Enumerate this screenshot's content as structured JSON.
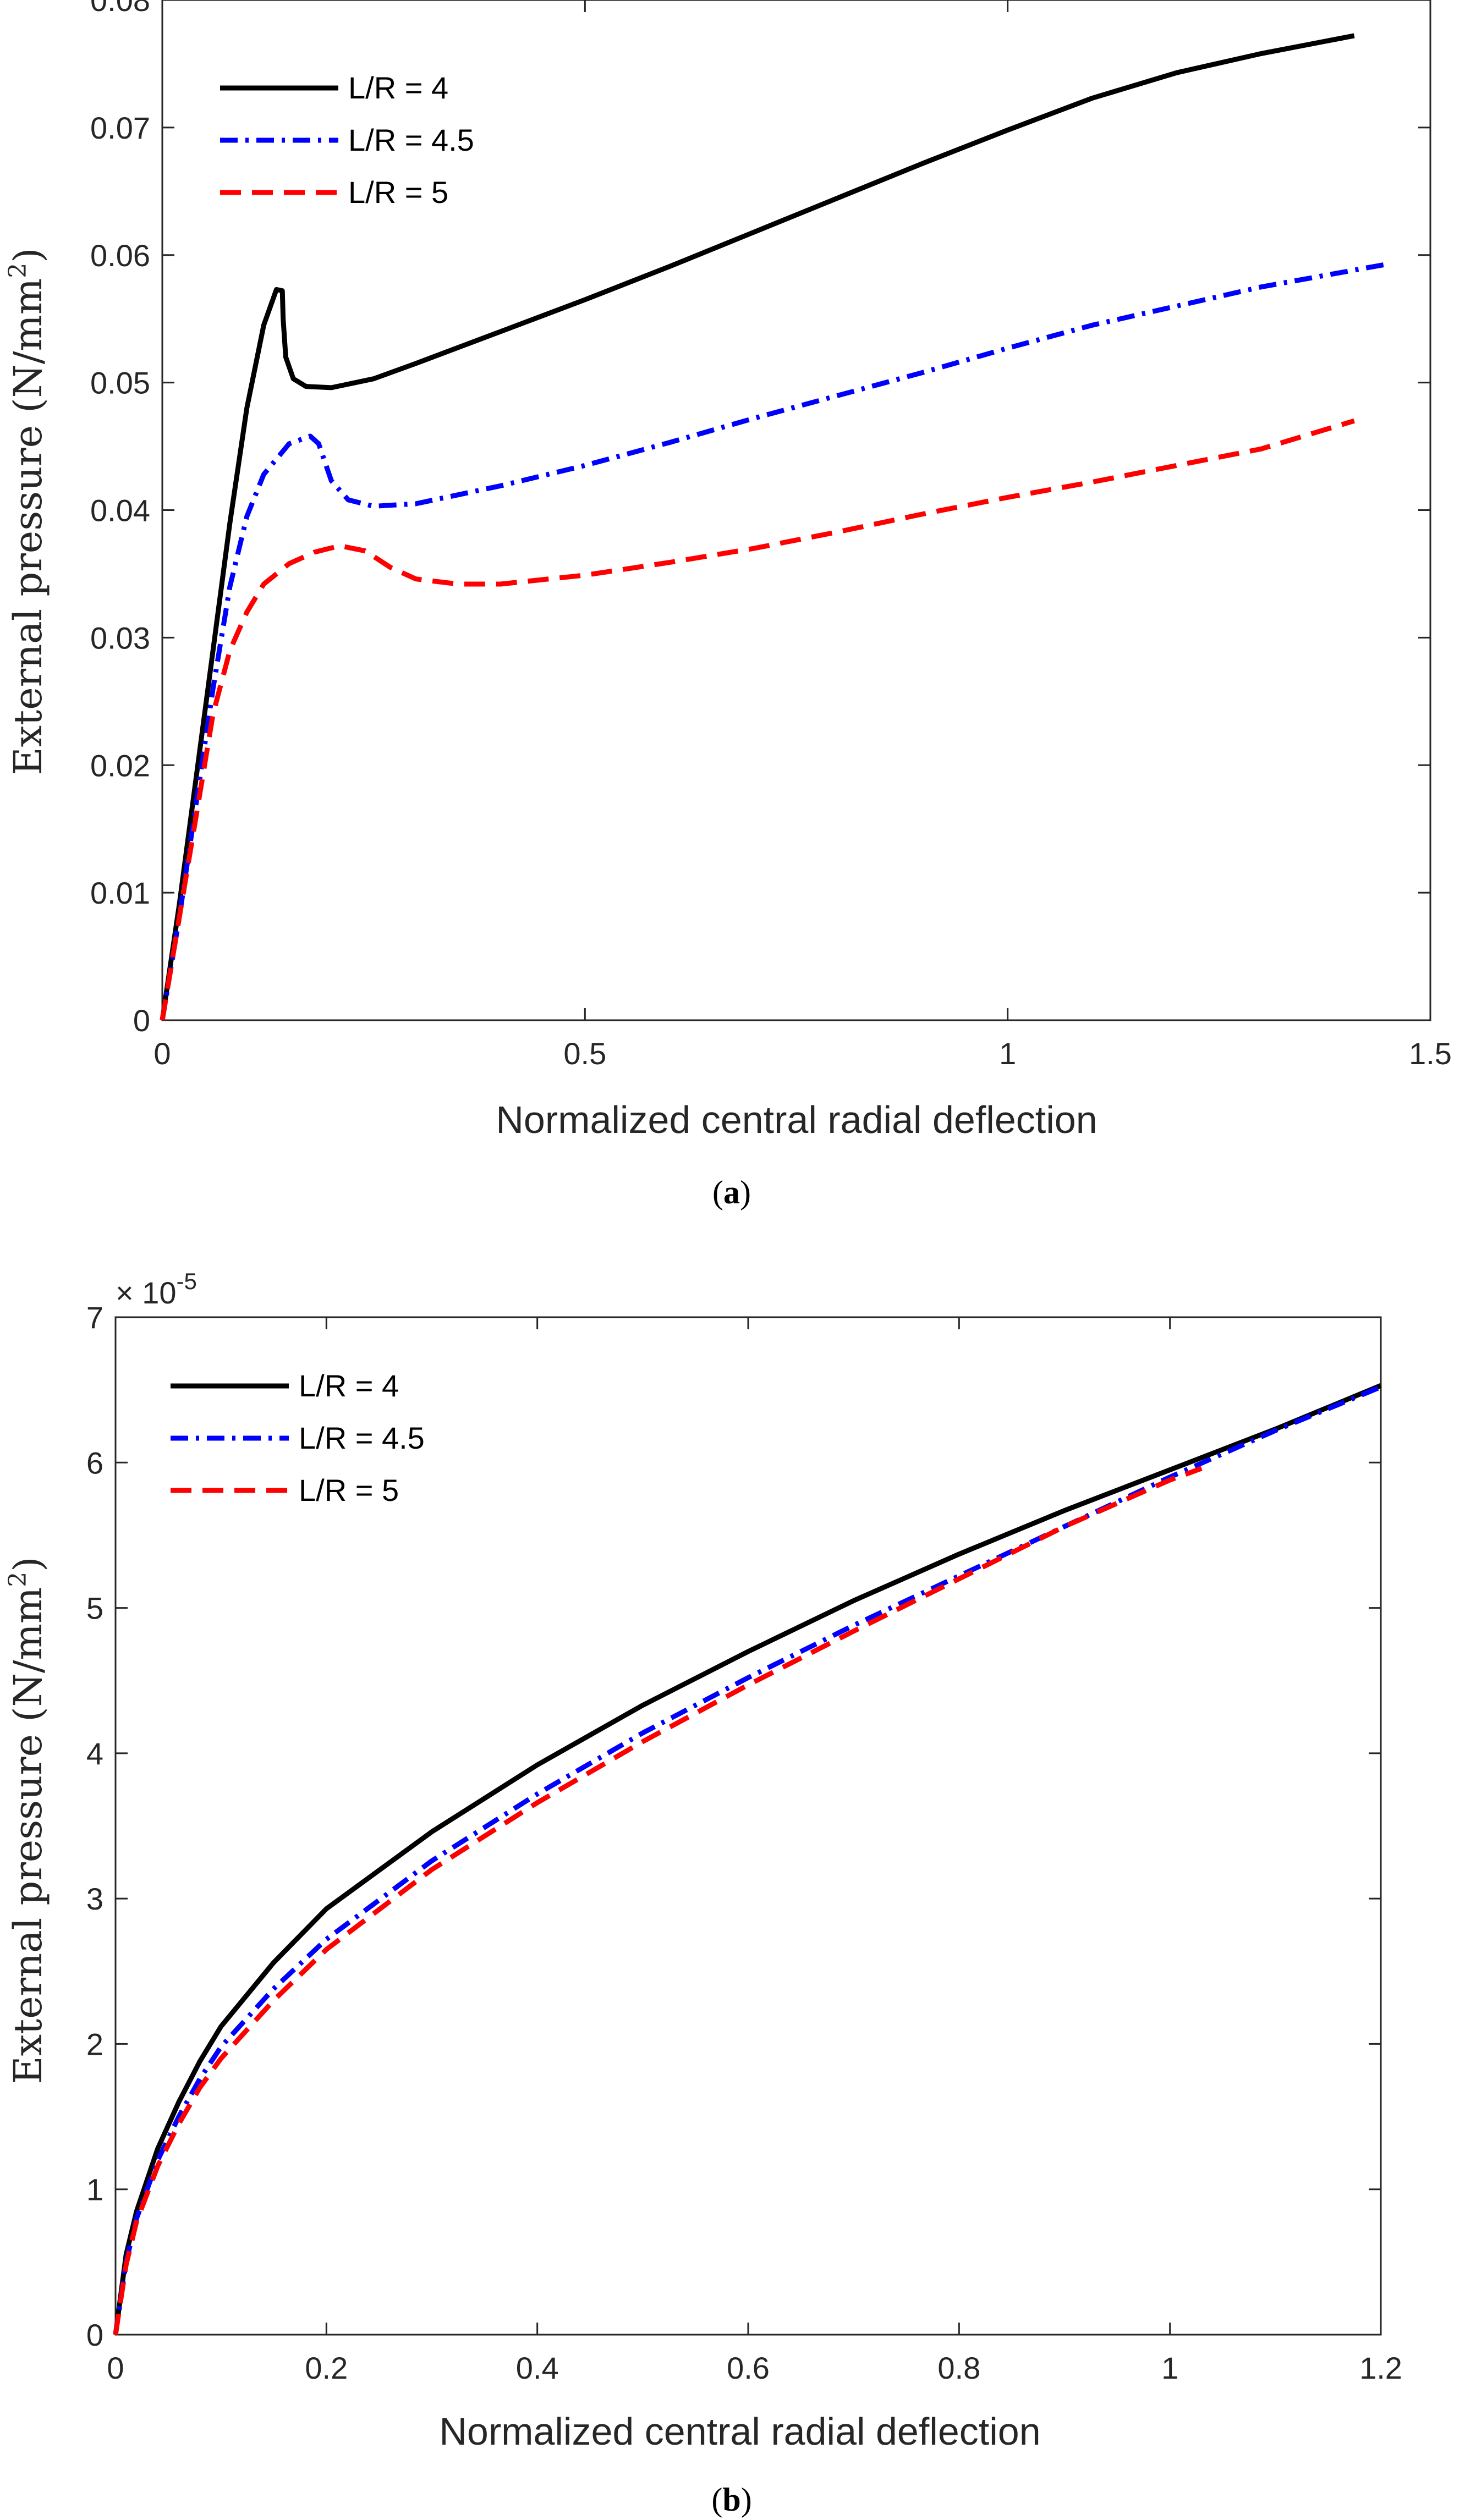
{
  "chart_data": [
    {
      "type": "line",
      "caption_letter": "a",
      "caption_open": "(",
      "caption_close": ")",
      "xlabel": "Normalized central radial deflection",
      "ylabel_main": "External pressure (N/mm",
      "ylabel_sup": "2",
      "ylabel_end": ")",
      "xlim": [
        0,
        1.5
      ],
      "ylim": [
        0,
        0.08
      ],
      "x_ticks": [
        0,
        0.5,
        1,
        1.5
      ],
      "x_tick_labels": [
        "0",
        "0.5",
        "1",
        "1.5"
      ],
      "y_ticks": [
        0,
        0.01,
        0.02,
        0.03,
        0.04,
        0.05,
        0.06,
        0.07,
        0.08
      ],
      "y_tick_labels": [
        "0",
        "0.01",
        "0.02",
        "0.03",
        "0.04",
        "0.05",
        "0.06",
        "0.07",
        "0.08"
      ],
      "legend_position": "top-left",
      "series": [
        {
          "name": "L/R = 4",
          "color": "#000000",
          "dash": "solid",
          "points": [
            [
              0,
              0
            ],
            [
              0.02,
              0.009
            ],
            [
              0.04,
              0.019
            ],
            [
              0.06,
              0.029
            ],
            [
              0.08,
              0.039
            ],
            [
              0.1,
              0.048
            ],
            [
              0.12,
              0.0545
            ],
            [
              0.135,
              0.0573
            ],
            [
              0.142,
              0.0572
            ],
            [
              0.143,
              0.055
            ],
            [
              0.146,
              0.052
            ],
            [
              0.155,
              0.0503
            ],
            [
              0.17,
              0.0497
            ],
            [
              0.2,
              0.0496
            ],
            [
              0.25,
              0.0503
            ],
            [
              0.3,
              0.0515
            ],
            [
              0.4,
              0.054
            ],
            [
              0.5,
              0.0565
            ],
            [
              0.6,
              0.0591
            ],
            [
              0.7,
              0.0618
            ],
            [
              0.8,
              0.0645
            ],
            [
              0.9,
              0.0672
            ],
            [
              1.0,
              0.0698
            ],
            [
              1.1,
              0.0723
            ],
            [
              1.2,
              0.0743
            ],
            [
              1.3,
              0.0758
            ],
            [
              1.41,
              0.0772
            ]
          ]
        },
        {
          "name": "L/R = 4.5",
          "color": "#0000ff",
          "dash": "dashdot",
          "points": [
            [
              0,
              0
            ],
            [
              0.02,
              0.008
            ],
            [
              0.04,
              0.017
            ],
            [
              0.06,
              0.026
            ],
            [
              0.08,
              0.034
            ],
            [
              0.1,
              0.0395
            ],
            [
              0.12,
              0.0428
            ],
            [
              0.15,
              0.0452
            ],
            [
              0.175,
              0.0458
            ],
            [
              0.185,
              0.0452
            ],
            [
              0.2,
              0.0423
            ],
            [
              0.22,
              0.0408
            ],
            [
              0.25,
              0.0403
            ],
            [
              0.3,
              0.0405
            ],
            [
              0.4,
              0.0419
            ],
            [
              0.5,
              0.0435
            ],
            [
              0.6,
              0.0453
            ],
            [
              0.7,
              0.0472
            ],
            [
              0.8,
              0.049
            ],
            [
              0.9,
              0.0508
            ],
            [
              1.0,
              0.0527
            ],
            [
              1.1,
              0.0545
            ],
            [
              1.2,
              0.056
            ],
            [
              1.3,
              0.0575
            ],
            [
              1.45,
              0.0593
            ]
          ]
        },
        {
          "name": "L/R = 5",
          "color": "#ff0000",
          "dash": "dashed",
          "points": [
            [
              0,
              0
            ],
            [
              0.02,
              0.008
            ],
            [
              0.04,
              0.016
            ],
            [
              0.06,
              0.024
            ],
            [
              0.08,
              0.029
            ],
            [
              0.1,
              0.032
            ],
            [
              0.12,
              0.0342
            ],
            [
              0.15,
              0.0358
            ],
            [
              0.18,
              0.0367
            ],
            [
              0.21,
              0.0372
            ],
            [
              0.24,
              0.0368
            ],
            [
              0.27,
              0.0355
            ],
            [
              0.3,
              0.0346
            ],
            [
              0.35,
              0.0342
            ],
            [
              0.4,
              0.0342
            ],
            [
              0.5,
              0.0349
            ],
            [
              0.6,
              0.0359
            ],
            [
              0.7,
              0.037
            ],
            [
              0.8,
              0.0383
            ],
            [
              0.9,
              0.0397
            ],
            [
              1.0,
              0.041
            ],
            [
              1.1,
              0.0422
            ],
            [
              1.2,
              0.0435
            ],
            [
              1.3,
              0.0448
            ],
            [
              1.41,
              0.047
            ]
          ]
        }
      ]
    },
    {
      "type": "line",
      "caption_letter": "b",
      "caption_open": "(",
      "caption_close": ")",
      "xlabel": "Normalized central radial deflection",
      "ylabel_main": "External pressure (N/mm",
      "ylabel_sup": "2",
      "ylabel_end": ")",
      "exponent_base": "× 10",
      "exponent_power": "-5",
      "xlim": [
        0,
        1.2
      ],
      "ylim": [
        0,
        7
      ],
      "x_ticks": [
        0,
        0.2,
        0.4,
        0.6,
        0.8,
        1,
        1.2
      ],
      "x_tick_labels": [
        "0",
        "0.2",
        "0.4",
        "0.6",
        "0.8",
        "1",
        "1.2"
      ],
      "y_ticks": [
        0,
        1,
        2,
        3,
        4,
        5,
        6,
        7
      ],
      "y_tick_labels": [
        "0",
        "1",
        "2",
        "3",
        "4",
        "5",
        "6",
        "7"
      ],
      "legend_position": "top-left",
      "series": [
        {
          "name": "L/R = 4",
          "color": "#000000",
          "dash": "solid",
          "points": [
            [
              0,
              0
            ],
            [
              0.01,
              0.55
            ],
            [
              0.02,
              0.85
            ],
            [
              0.04,
              1.28
            ],
            [
              0.06,
              1.6
            ],
            [
              0.08,
              1.88
            ],
            [
              0.1,
              2.12
            ],
            [
              0.15,
              2.56
            ],
            [
              0.2,
              2.93
            ],
            [
              0.3,
              3.46
            ],
            [
              0.4,
              3.92
            ],
            [
              0.5,
              4.33
            ],
            [
              0.6,
              4.7
            ],
            [
              0.7,
              5.05
            ],
            [
              0.8,
              5.37
            ],
            [
              0.9,
              5.67
            ],
            [
              1.0,
              5.95
            ],
            [
              1.1,
              6.23
            ],
            [
              1.2,
              6.53
            ]
          ]
        },
        {
          "name": "L/R = 4.5",
          "color": "#0000ff",
          "dash": "dashdot",
          "points": [
            [
              0,
              0
            ],
            [
              0.01,
              0.5
            ],
            [
              0.02,
              0.8
            ],
            [
              0.04,
              1.2
            ],
            [
              0.06,
              1.5
            ],
            [
              0.08,
              1.76
            ],
            [
              0.1,
              1.98
            ],
            [
              0.15,
              2.38
            ],
            [
              0.2,
              2.72
            ],
            [
              0.3,
              3.26
            ],
            [
              0.4,
              3.72
            ],
            [
              0.5,
              4.14
            ],
            [
              0.6,
              4.52
            ],
            [
              0.7,
              4.88
            ],
            [
              0.8,
              5.22
            ],
            [
              0.9,
              5.56
            ],
            [
              1.0,
              5.9
            ],
            [
              1.1,
              6.22
            ],
            [
              1.2,
              6.52
            ]
          ]
        },
        {
          "name": "L/R = 5",
          "color": "#ff0000",
          "dash": "dashed",
          "points": [
            [
              0,
              0
            ],
            [
              0.01,
              0.48
            ],
            [
              0.02,
              0.78
            ],
            [
              0.04,
              1.16
            ],
            [
              0.06,
              1.45
            ],
            [
              0.08,
              1.7
            ],
            [
              0.1,
              1.9
            ],
            [
              0.15,
              2.3
            ],
            [
              0.2,
              2.65
            ],
            [
              0.3,
              3.2
            ],
            [
              0.4,
              3.66
            ],
            [
              0.5,
              4.08
            ],
            [
              0.6,
              4.47
            ],
            [
              0.7,
              4.84
            ],
            [
              0.8,
              5.2
            ],
            [
              0.9,
              5.56
            ],
            [
              1.0,
              5.88
            ],
            [
              1.03,
              5.96
            ]
          ]
        }
      ]
    }
  ]
}
